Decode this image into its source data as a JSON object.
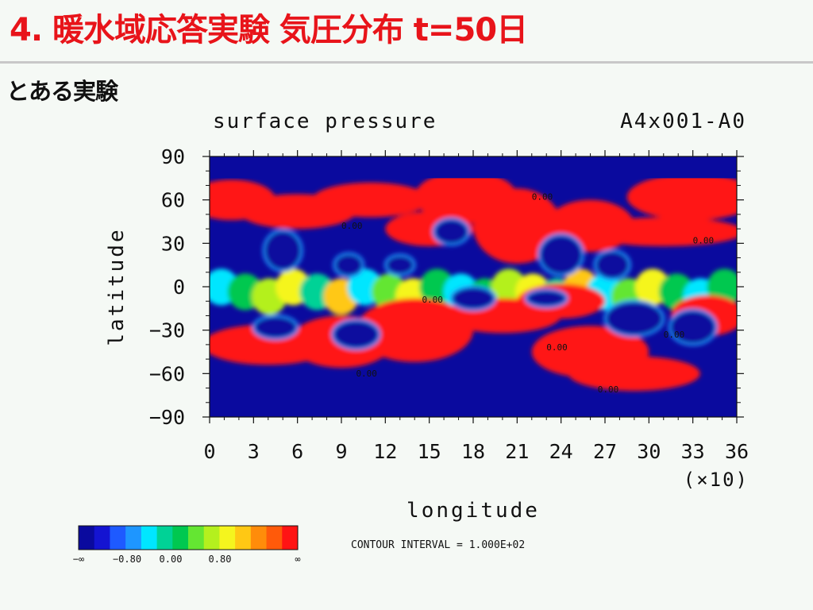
{
  "slide": {
    "title": "4. 暖水域応答実験 気圧分布 t=50日",
    "subtitle": "とある実験"
  },
  "colors": {
    "title": "#e8141a",
    "palette": [
      "#0a0a9e",
      "#1414d2",
      "#1e5aff",
      "#1e96ff",
      "#00e6ff",
      "#00d296",
      "#00c850",
      "#64e632",
      "#b4f01e",
      "#f5f51e",
      "#ffc814",
      "#ff8c0a",
      "#ff5a0a",
      "#ff1414"
    ]
  },
  "chart_data": {
    "type": "heatmap",
    "title": "surface pressure",
    "run_id": "A4x001-A0",
    "xlabel": "longitude",
    "ylabel": "latitude",
    "x_multiplier": "(×10)",
    "xlim": [
      0,
      36
    ],
    "ylim": [
      -90,
      90
    ],
    "xticks": [
      0,
      3,
      6,
      9,
      12,
      15,
      18,
      21,
      24,
      27,
      30,
      33,
      36
    ],
    "yticks": [
      90,
      60,
      30,
      0,
      -30,
      -60,
      -90
    ],
    "ytick_labels": [
      "90",
      "60",
      "30",
      "0",
      "−30",
      "−60",
      "−90"
    ],
    "contour_interval": "CONTOUR INTERVAL = 1.000E+02",
    "colorbar_labels": [
      "−∞",
      "−0.80",
      "0.00",
      "0.80",
      "∞"
    ],
    "zero_contour_labels": [
      {
        "text": "0.00",
        "lon": 9.0,
        "lat": 40
      },
      {
        "text": "0.00",
        "lon": 22.0,
        "lat": 60
      },
      {
        "text": "0.00",
        "lon": 33.0,
        "lat": 30
      },
      {
        "text": "0.00",
        "lon": 14.5,
        "lat": -11
      },
      {
        "text": "0.00",
        "lon": 23.0,
        "lat": -44
      },
      {
        "text": "0.00",
        "lon": 26.5,
        "lat": -73
      },
      {
        "text": "0.00",
        "lon": 10.0,
        "lat": -62
      },
      {
        "text": "0.00",
        "lon": 31.0,
        "lat": -35
      }
    ],
    "high_regions": [
      {
        "lon": 1.5,
        "lat": 60,
        "rx": 3.0,
        "ry": 14
      },
      {
        "lon": 6,
        "lat": 52,
        "rx": 4.0,
        "ry": 12
      },
      {
        "lon": 11,
        "lat": 60,
        "rx": 4.0,
        "ry": 12
      },
      {
        "lon": 17.5,
        "lat": 62,
        "rx": 3.5,
        "ry": 18
      },
      {
        "lon": 21,
        "lat": 42,
        "rx": 3.0,
        "ry": 26
      },
      {
        "lon": 26,
        "lat": 42,
        "rx": 3.0,
        "ry": 18
      },
      {
        "lon": 33,
        "lat": 62,
        "rx": 4.5,
        "ry": 16
      },
      {
        "lon": 31,
        "lat": 38,
        "rx": 5.5,
        "ry": 10
      },
      {
        "lon": 15,
        "lat": 40,
        "rx": 3.0,
        "ry": 12
      },
      {
        "lon": 4,
        "lat": -40,
        "rx": 4.5,
        "ry": 14
      },
      {
        "lon": 9,
        "lat": -38,
        "rx": 3.5,
        "ry": 18
      },
      {
        "lon": 14,
        "lat": -30,
        "rx": 4.0,
        "ry": 22
      },
      {
        "lon": 20,
        "lat": -20,
        "rx": 4.0,
        "ry": 12
      },
      {
        "lon": 26,
        "lat": -45,
        "rx": 4.0,
        "ry": 18
      },
      {
        "lon": 29,
        "lat": -60,
        "rx": 4.5,
        "ry": 12
      },
      {
        "lon": 24,
        "lat": -10,
        "rx": 3.0,
        "ry": 12
      },
      {
        "lon": 34,
        "lat": -20,
        "rx": 2.5,
        "ry": 14
      }
    ],
    "low_regions": [
      {
        "lon": 5,
        "lat": 25,
        "rx": 1.3,
        "ry": 14
      },
      {
        "lon": 9.5,
        "lat": 15,
        "rx": 1.0,
        "ry": 8
      },
      {
        "lon": 16.5,
        "lat": 38,
        "rx": 1.2,
        "ry": 9
      },
      {
        "lon": 13,
        "lat": 15,
        "rx": 1.0,
        "ry": 7
      },
      {
        "lon": 24,
        "lat": 22,
        "rx": 1.5,
        "ry": 14
      },
      {
        "lon": 27.5,
        "lat": 15,
        "rx": 1.2,
        "ry": 10
      },
      {
        "lon": 4.5,
        "lat": -28,
        "rx": 1.5,
        "ry": 8
      },
      {
        "lon": 10,
        "lat": -33,
        "rx": 1.6,
        "ry": 10
      },
      {
        "lon": 18,
        "lat": -8,
        "rx": 1.5,
        "ry": 8
      },
      {
        "lon": 29,
        "lat": -22,
        "rx": 2.0,
        "ry": 12
      },
      {
        "lon": 33,
        "lat": -28,
        "rx": 1.6,
        "ry": 12
      },
      {
        "lon": 23,
        "lat": -8,
        "rx": 1.4,
        "ry": 6
      }
    ]
  }
}
